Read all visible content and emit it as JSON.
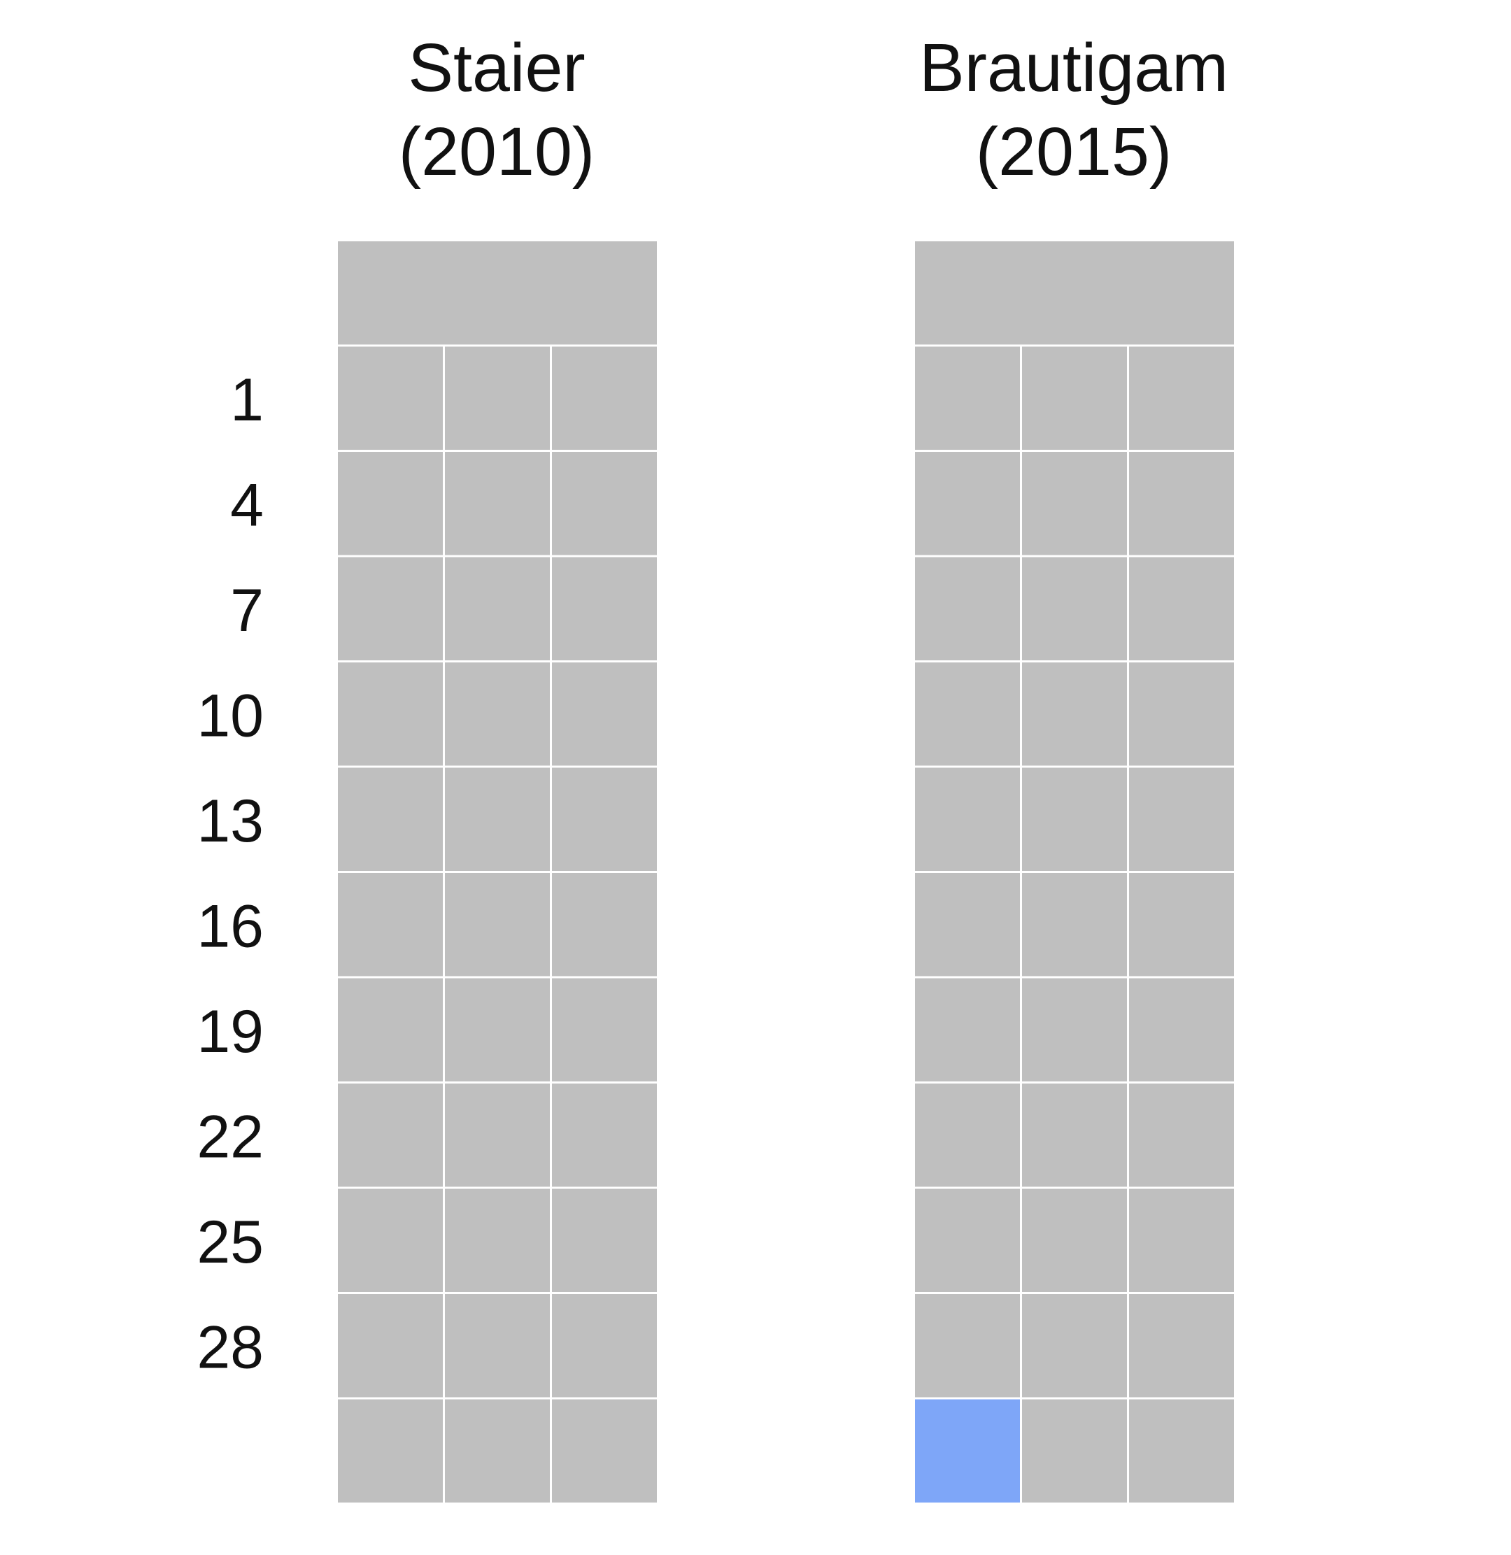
{
  "chart_data": {
    "type": "heatmap",
    "title": "",
    "columns": [
      {
        "name": "Staier",
        "year": "(2010)",
        "highlighted_cells": []
      },
      {
        "name": "Brautigam",
        "year": "(2015)",
        "highlighted_cells": [
          {
            "row": 11,
            "col": 0
          }
        ]
      }
    ],
    "row_labels": [
      "",
      "1",
      "4",
      "7",
      "10",
      "13",
      "16",
      "19",
      "22",
      "25",
      "28",
      ""
    ],
    "cells_per_row": [
      1,
      3,
      3,
      3,
      3,
      3,
      3,
      3,
      3,
      3,
      3,
      3
    ],
    "grid": true,
    "legend": "none"
  },
  "colors": {
    "background": "#ffffff",
    "cell": "#bfbfbf",
    "highlight": "#7ea6f8",
    "gridline": "#ffffff",
    "text": "#111111"
  }
}
